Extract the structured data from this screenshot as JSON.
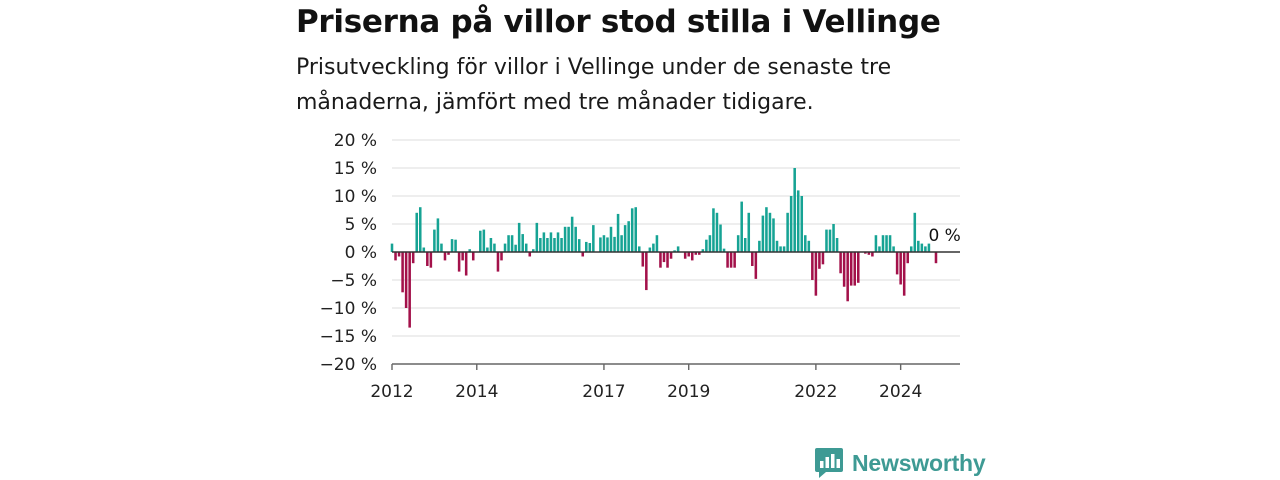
{
  "header": {
    "title": "Priserna på villor stod stilla i Vellinge",
    "subtitle": "Prisutveckling för villor i Vellinge under de senaste tre månaderna, jämfört med tre månader tidigare."
  },
  "brand": {
    "name": "Newsworthy",
    "icon": "newsworthy-logo-icon",
    "color": "#3e9a94"
  },
  "chart_data": {
    "type": "bar",
    "title": "Priserna på villor stod stilla i Vellinge",
    "subtitle": "Prisutveckling för villor i Vellinge under de senaste tre månaderna, jämfört med tre månader tidigare.",
    "ylim": [
      -20,
      20
    ],
    "yticks": [
      20,
      15,
      10,
      5,
      0,
      -5,
      -10,
      -15,
      -20
    ],
    "ytick_labels": [
      "20 %",
      "15 %",
      "10 %",
      "5 %",
      "0 %",
      "−5 %",
      "−10 %",
      "−15 %",
      "−20 %"
    ],
    "xlim": [
      2012.0,
      2025.4
    ],
    "xticks": [
      2012,
      2014,
      2017,
      2019,
      2022,
      2024
    ],
    "xtick_labels": [
      "2012",
      "2014",
      "2017",
      "2019",
      "2022",
      "2024"
    ],
    "grid": true,
    "colors": {
      "positive": "#16a394",
      "negative": "#a3114a",
      "grid": "#dddddd",
      "zero_line": "#333333"
    },
    "annotation": {
      "text": "0 %",
      "x": 2024.75,
      "y": 0
    },
    "start": "2012-01",
    "frequency": "monthly",
    "values": [
      1.5,
      -1.5,
      -0.8,
      -7.2,
      -10,
      -13.5,
      -2,
      7,
      8,
      0.8,
      -2.5,
      -2.8,
      4,
      6,
      1.5,
      -1.5,
      -0.5,
      2.3,
      2.2,
      -3.5,
      -1.5,
      -4.2,
      0.5,
      -1.5,
      0,
      3.8,
      4,
      0.8,
      2.5,
      1.5,
      -3.5,
      -1.5,
      1.5,
      3,
      3,
      1.3,
      5.2,
      3.2,
      1.5,
      -0.8,
      0.5,
      5.2,
      2.5,
      3.5,
      2.5,
      3.5,
      2.5,
      3.5,
      2.5,
      4.5,
      4.5,
      6.3,
      4.5,
      2.3,
      -0.8,
      1.8,
      1.6,
      4.8,
      0,
      2.6,
      3,
      2.6,
      4.5,
      2.7,
      6.8,
      3,
      4.8,
      5.5,
      7.8,
      8,
      1,
      -2.6,
      -6.8,
      0.8,
      1.5,
      3,
      -2.8,
      -1.8,
      -2.8,
      -1.2,
      0.3,
      1,
      0,
      -1.2,
      -0.8,
      -1.5,
      -0.5,
      -0.5,
      0.5,
      2.2,
      3,
      7.8,
      7,
      4.9,
      0.6,
      -2.8,
      -2.8,
      -2.8,
      3,
      9,
      2.5,
      7,
      -2.5,
      -4.8,
      2,
      6.5,
      8,
      7,
      6,
      2,
      1,
      1,
      7,
      10,
      15,
      11,
      10,
      3,
      2,
      -5,
      -7.8,
      -3,
      -2.2,
      4,
      4,
      5,
      2.5,
      -3.8,
      -6.2,
      -8.8,
      -6,
      -6,
      -5.5,
      0,
      -0.3,
      -0.5,
      -0.8,
      3,
      1,
      3,
      3,
      3,
      1,
      -4,
      -5.8,
      -7.8,
      -2,
      1,
      7,
      2,
      1.5,
      1,
      1.5,
      0,
      -2,
      0,
      0,
      0
    ]
  }
}
